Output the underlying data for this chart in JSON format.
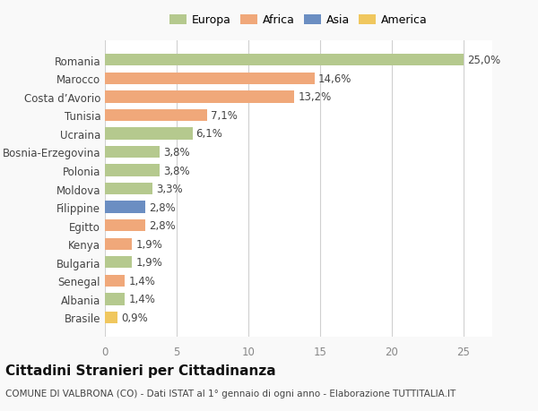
{
  "categories": [
    "Brasile",
    "Albania",
    "Senegal",
    "Bulgaria",
    "Kenya",
    "Egitto",
    "Filippine",
    "Moldova",
    "Polonia",
    "Bosnia-Erzegovina",
    "Ucraina",
    "Tunisia",
    "Costa d’Avorio",
    "Marocco",
    "Romania"
  ],
  "values": [
    0.9,
    1.4,
    1.4,
    1.9,
    1.9,
    2.8,
    2.8,
    3.3,
    3.8,
    3.8,
    6.1,
    7.1,
    13.2,
    14.6,
    25.0
  ],
  "labels": [
    "0,9%",
    "1,4%",
    "1,4%",
    "1,9%",
    "1,9%",
    "2,8%",
    "2,8%",
    "3,3%",
    "3,8%",
    "3,8%",
    "6,1%",
    "7,1%",
    "13,2%",
    "14,6%",
    "25,0%"
  ],
  "colors": [
    "#f0c75e",
    "#b5c98e",
    "#f0a87a",
    "#b5c98e",
    "#f0a87a",
    "#f0a87a",
    "#6b8ec2",
    "#b5c98e",
    "#b5c98e",
    "#b5c98e",
    "#b5c98e",
    "#f0a87a",
    "#f0a87a",
    "#f0a87a",
    "#b5c98e"
  ],
  "continent": [
    "America",
    "Europa",
    "Africa",
    "Europa",
    "Africa",
    "Africa",
    "Asia",
    "Europa",
    "Europa",
    "Europa",
    "Europa",
    "Africa",
    "Africa",
    "Africa",
    "Europa"
  ],
  "legend_labels": [
    "Europa",
    "Africa",
    "Asia",
    "America"
  ],
  "legend_colors": [
    "#b5c98e",
    "#f0a87a",
    "#6b8ec2",
    "#f0c75e"
  ],
  "title": "Cittadini Stranieri per Cittadinanza",
  "subtitle": "COMUNE DI VALBRONA (CO) - Dati ISTAT al 1° gennaio di ogni anno - Elaborazione TUTTITALIA.IT",
  "xlim": [
    0,
    27
  ],
  "xticks": [
    0,
    5,
    10,
    15,
    20,
    25
  ],
  "background_color": "#f9f9f9",
  "bar_background": "#ffffff",
  "grid_color": "#d0d0d0",
  "label_fontsize": 8.5,
  "tick_fontsize": 8.5,
  "title_fontsize": 11,
  "subtitle_fontsize": 7.5
}
